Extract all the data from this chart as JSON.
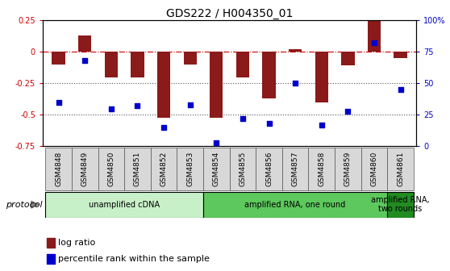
{
  "title": "GDS222 / H004350_01",
  "samples": [
    "GSM4848",
    "GSM4849",
    "GSM4850",
    "GSM4851",
    "GSM4852",
    "GSM4853",
    "GSM4854",
    "GSM4855",
    "GSM4856",
    "GSM4857",
    "GSM4858",
    "GSM4859",
    "GSM4860",
    "GSM4861"
  ],
  "log_ratio": [
    -0.1,
    0.13,
    -0.2,
    -0.2,
    -0.52,
    -0.1,
    -0.52,
    -0.2,
    -0.37,
    0.02,
    -0.4,
    -0.11,
    0.27,
    -0.05
  ],
  "percentile_rank": [
    35,
    68,
    30,
    32,
    15,
    33,
    3,
    22,
    18,
    50,
    17,
    28,
    82,
    45
  ],
  "ylim_left": [
    -0.75,
    0.25
  ],
  "ylim_right": [
    0,
    100
  ],
  "yticks_left": [
    0.25,
    0.0,
    -0.25,
    -0.5,
    -0.75
  ],
  "yticks_right": [
    100,
    75,
    50,
    25,
    0
  ],
  "bar_color": "#8B1A1A",
  "scatter_color": "#0000CC",
  "hline_color": "#CC0000",
  "dotted_line_color": "#555555",
  "protocol_groups": [
    {
      "label": "unamplified cDNA",
      "start": 0,
      "end": 5,
      "color": "#C8F0C8"
    },
    {
      "label": "amplified RNA, one round",
      "start": 6,
      "end": 12,
      "color": "#5DC85D"
    },
    {
      "label": "amplified RNA,\ntwo rounds",
      "start": 13,
      "end": 13,
      "color": "#228B22"
    }
  ],
  "protocol_label": "protocol",
  "legend_items": [
    "log ratio",
    "percentile rank within the sample"
  ],
  "title_fontsize": 10,
  "tick_fontsize": 7,
  "label_fontsize": 8,
  "xtick_fontsize": 6.5
}
